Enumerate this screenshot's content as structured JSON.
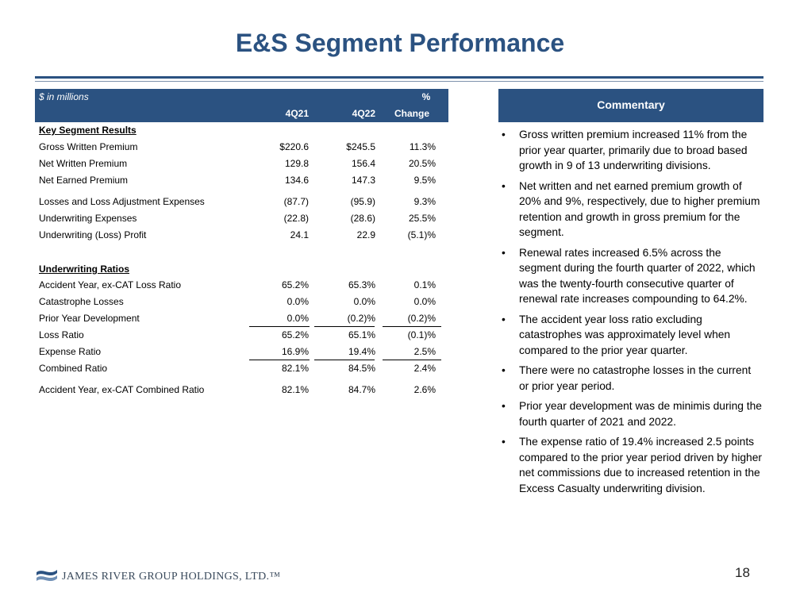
{
  "page": {
    "title": "E&S Segment Performance",
    "page_number": "18",
    "company": "JAMES RIVER GROUP HOLDINGS, LTD.™"
  },
  "colors": {
    "brand": "#2b5281",
    "header_text": "#ffffff"
  },
  "table": {
    "units": "$ in millions",
    "pct_label": "%",
    "columns": [
      "4Q21",
      "4Q22",
      "Change"
    ],
    "key_results_header": "Key Segment Results",
    "ratios_header": "Underwriting Ratios",
    "key_rows": [
      {
        "label": "Gross Written Premium",
        "q21": "$220.6",
        "q22": "$245.5",
        "chg": "11.3%"
      },
      {
        "label": "Net Written Premium",
        "q21": "129.8",
        "q22": "156.4",
        "chg": "20.5%"
      },
      {
        "label": "Net Earned Premium",
        "q21": "134.6",
        "q22": "147.3",
        "chg": "9.5%"
      },
      {
        "label": "Losses and Loss Adjustment Expenses",
        "q21": "(87.7)",
        "q22": "(95.9)",
        "chg": "9.3%"
      },
      {
        "label": "Underwriting Expenses",
        "q21": "(22.8)",
        "q22": "(28.6)",
        "chg": "25.5%"
      },
      {
        "label": "Underwriting (Loss) Profit",
        "q21": "24.1",
        "q22": "22.9",
        "chg": "(5.1)%"
      }
    ],
    "ratio_rows": [
      {
        "label": "Accident Year, ex-CAT Loss Ratio",
        "q21": "65.2%",
        "q22": "65.3%",
        "chg": "0.1%"
      },
      {
        "label": "Catastrophe Losses",
        "q21": "0.0%",
        "q22": "0.0%",
        "chg": "0.0%"
      },
      {
        "label": "Prior Year Development",
        "q21": "0.0%",
        "q22": "(0.2)%",
        "chg": "(0.2)%"
      },
      {
        "label": "Loss Ratio",
        "q21": "65.2%",
        "q22": "65.1%",
        "chg": "(0.1)%"
      },
      {
        "label": "Expense Ratio",
        "q21": "16.9%",
        "q22": "19.4%",
        "chg": "2.5%"
      },
      {
        "label": "Combined Ratio",
        "q21": "82.1%",
        "q22": "84.5%",
        "chg": "2.4%"
      },
      {
        "label": "Accident Year, ex-CAT Combined Ratio",
        "q21": "82.1%",
        "q22": "84.7%",
        "chg": "2.6%"
      }
    ]
  },
  "commentary": {
    "header": "Commentary",
    "bullet_char": "•",
    "bullets": [
      "Gross written premium increased 11% from the prior year quarter, primarily due to broad based growth in 9 of 13 underwriting divisions.",
      "Net written and net earned premium growth of 20% and 9%, respectively, due to higher premium retention and growth in gross premium for the segment.",
      "Renewal rates increased 6.5% across the segment during the fourth quarter of 2022, which was the twenty-fourth consecutive quarter of renewal rate increases compounding to 64.2%.",
      "The accident year loss ratio excluding catastrophes was approximately level when compared to the prior year quarter.",
      "There were no catastrophe losses in the current or prior year period.",
      "Prior year development was de minimis during the fourth quarter of 2021 and 2022.",
      "The expense ratio of 19.4% increased 2.5 points compared to the prior year period driven by higher net commissions due to increased retention in the Excess Casualty underwriting division."
    ]
  }
}
